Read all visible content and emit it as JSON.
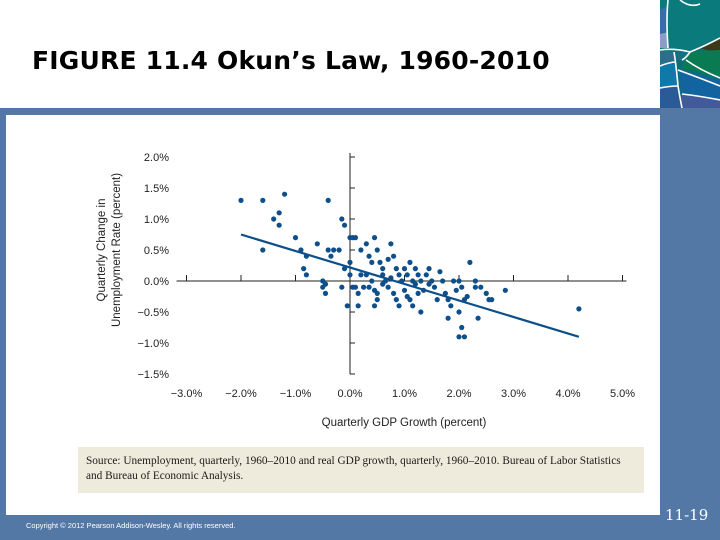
{
  "slide": {
    "title": "FIGURE 11.4  Okun’s Law, 1960-2010",
    "copyright": "Copyright © 2012 Pearson Addison-Wesley. All rights reserved.",
    "slide_number": "11-19",
    "source_note": "Source: Unemployment, quarterly, 1960–2010 and real GDP growth, quarterly, 1960–2010. Bureau of Labor Statistics and Bureau of Economic Analysis.",
    "colors": {
      "frame_blue": "#5478a6",
      "point_blue": "#0d4f8b",
      "source_bg": "#efebdc"
    }
  },
  "chart_data": {
    "type": "scatter",
    "title": "Okun’s Law, 1960-2010",
    "xlabel": "Quarterly GDP Growth (percent)",
    "ylabel": "Quarterly Change in Unemployment Rate (percent)",
    "ylabel_lines": [
      "Quarterly Change in",
      "Unemployment Rate (percent)"
    ],
    "xlim": [
      -3.0,
      5.0
    ],
    "ylim": [
      -1.5,
      2.0
    ],
    "x_ticks": [
      "−3.0%",
      "−2.0%",
      "−1.0%",
      "0.0%",
      "1.0%",
      "2.0%",
      "3.0%",
      "4.0%",
      "5.0%"
    ],
    "y_ticks": [
      "2.0%",
      "1.5%",
      "1.0%",
      "0.5%",
      "0.0%",
      "−0.5%",
      "−1.0%",
      "−1.5%"
    ],
    "grid": false,
    "legend": null,
    "trend_line": {
      "x": [
        -2.0,
        4.2
      ],
      "y": [
        0.75,
        -0.9
      ]
    },
    "points": [
      [
        -2.0,
        1.3
      ],
      [
        -1.6,
        1.3
      ],
      [
        -1.2,
        1.4
      ],
      [
        -1.3,
        1.1
      ],
      [
        -1.4,
        1.0
      ],
      [
        -1.3,
        0.9
      ],
      [
        -1.6,
        0.5
      ],
      [
        -1.0,
        0.7
      ],
      [
        -0.9,
        0.5
      ],
      [
        -0.8,
        0.4
      ],
      [
        -0.85,
        0.2
      ],
      [
        -0.8,
        0.1
      ],
      [
        -0.6,
        0.6
      ],
      [
        -0.4,
        0.5
      ],
      [
        -0.3,
        0.5
      ],
      [
        -0.2,
        0.5
      ],
      [
        -0.35,
        0.4
      ],
      [
        -0.4,
        1.3
      ],
      [
        -0.15,
        1.0
      ],
      [
        -0.1,
        0.9
      ],
      [
        -0.5,
        0.0
      ],
      [
        -0.5,
        -0.1
      ],
      [
        -0.45,
        -0.2
      ],
      [
        -0.45,
        -0.05
      ],
      [
        -0.1,
        0.2
      ],
      [
        -0.15,
        -0.1
      ],
      [
        -0.05,
        -0.4
      ],
      [
        0.0,
        0.7
      ],
      [
        0.05,
        0.7
      ],
      [
        0.1,
        0.7
      ],
      [
        0.0,
        0.3
      ],
      [
        0.0,
        0.1
      ],
      [
        0.05,
        -0.1
      ],
      [
        0.1,
        -0.1
      ],
      [
        0.15,
        -0.2
      ],
      [
        0.15,
        -0.4
      ],
      [
        0.2,
        0.5
      ],
      [
        0.3,
        0.6
      ],
      [
        0.35,
        0.4
      ],
      [
        0.4,
        0.3
      ],
      [
        0.45,
        0.7
      ],
      [
        0.5,
        0.5
      ],
      [
        0.55,
        0.3
      ],
      [
        0.6,
        0.2
      ],
      [
        0.3,
        0.1
      ],
      [
        0.4,
        0.0
      ],
      [
        0.25,
        -0.1
      ],
      [
        0.35,
        -0.1
      ],
      [
        0.45,
        -0.15
      ],
      [
        0.5,
        -0.2
      ],
      [
        0.5,
        -0.3
      ],
      [
        0.45,
        -0.4
      ],
      [
        0.6,
        0.1
      ],
      [
        0.65,
        0.0
      ],
      [
        0.7,
        0.35
      ],
      [
        0.75,
        0.6
      ],
      [
        0.8,
        0.4
      ],
      [
        0.85,
        0.2
      ],
      [
        0.9,
        0.1
      ],
      [
        0.95,
        0.0
      ],
      [
        0.7,
        -0.1
      ],
      [
        0.8,
        -0.2
      ],
      [
        0.85,
        -0.3
      ],
      [
        0.9,
        -0.4
      ],
      [
        1.0,
        0.2
      ],
      [
        1.05,
        0.1
      ],
      [
        1.1,
        0.3
      ],
      [
        1.15,
        0.0
      ],
      [
        1.2,
        0.2
      ],
      [
        1.25,
        0.1
      ],
      [
        1.3,
        0.0
      ],
      [
        1.0,
        -0.15
      ],
      [
        1.05,
        -0.25
      ],
      [
        1.1,
        -0.3
      ],
      [
        1.15,
        -0.4
      ],
      [
        1.25,
        -0.2
      ],
      [
        1.3,
        -0.5
      ],
      [
        1.35,
        -0.15
      ],
      [
        1.4,
        0.1
      ],
      [
        1.45,
        0.2
      ],
      [
        1.5,
        0.0
      ],
      [
        1.55,
        -0.1
      ],
      [
        1.6,
        -0.3
      ],
      [
        1.65,
        0.15
      ],
      [
        1.7,
        0.0
      ],
      [
        1.75,
        -0.2
      ],
      [
        1.8,
        -0.3
      ],
      [
        1.85,
        -0.4
      ],
      [
        1.9,
        0.0
      ],
      [
        1.95,
        -0.15
      ],
      [
        2.0,
        0.0
      ],
      [
        2.05,
        -0.1
      ],
      [
        2.1,
        -0.3
      ],
      [
        2.15,
        -0.25
      ],
      [
        2.2,
        0.3
      ],
      [
        2.0,
        -0.5
      ],
      [
        1.8,
        -0.6
      ],
      [
        2.05,
        -0.75
      ],
      [
        2.1,
        -0.9
      ],
      [
        2.0,
        -0.9
      ],
      [
        2.3,
        -0.1
      ],
      [
        2.35,
        -0.6
      ],
      [
        2.4,
        -0.1
      ],
      [
        2.5,
        -0.2
      ],
      [
        2.55,
        -0.3
      ],
      [
        2.6,
        -0.3
      ],
      [
        2.85,
        -0.15
      ],
      [
        2.3,
        0.0
      ],
      [
        4.2,
        -0.45
      ],
      [
        0.2,
        0.1
      ],
      [
        0.6,
        -0.05
      ],
      [
        1.2,
        -0.05
      ],
      [
        0.75,
        0.05
      ],
      [
        1.45,
        -0.05
      ]
    ]
  }
}
